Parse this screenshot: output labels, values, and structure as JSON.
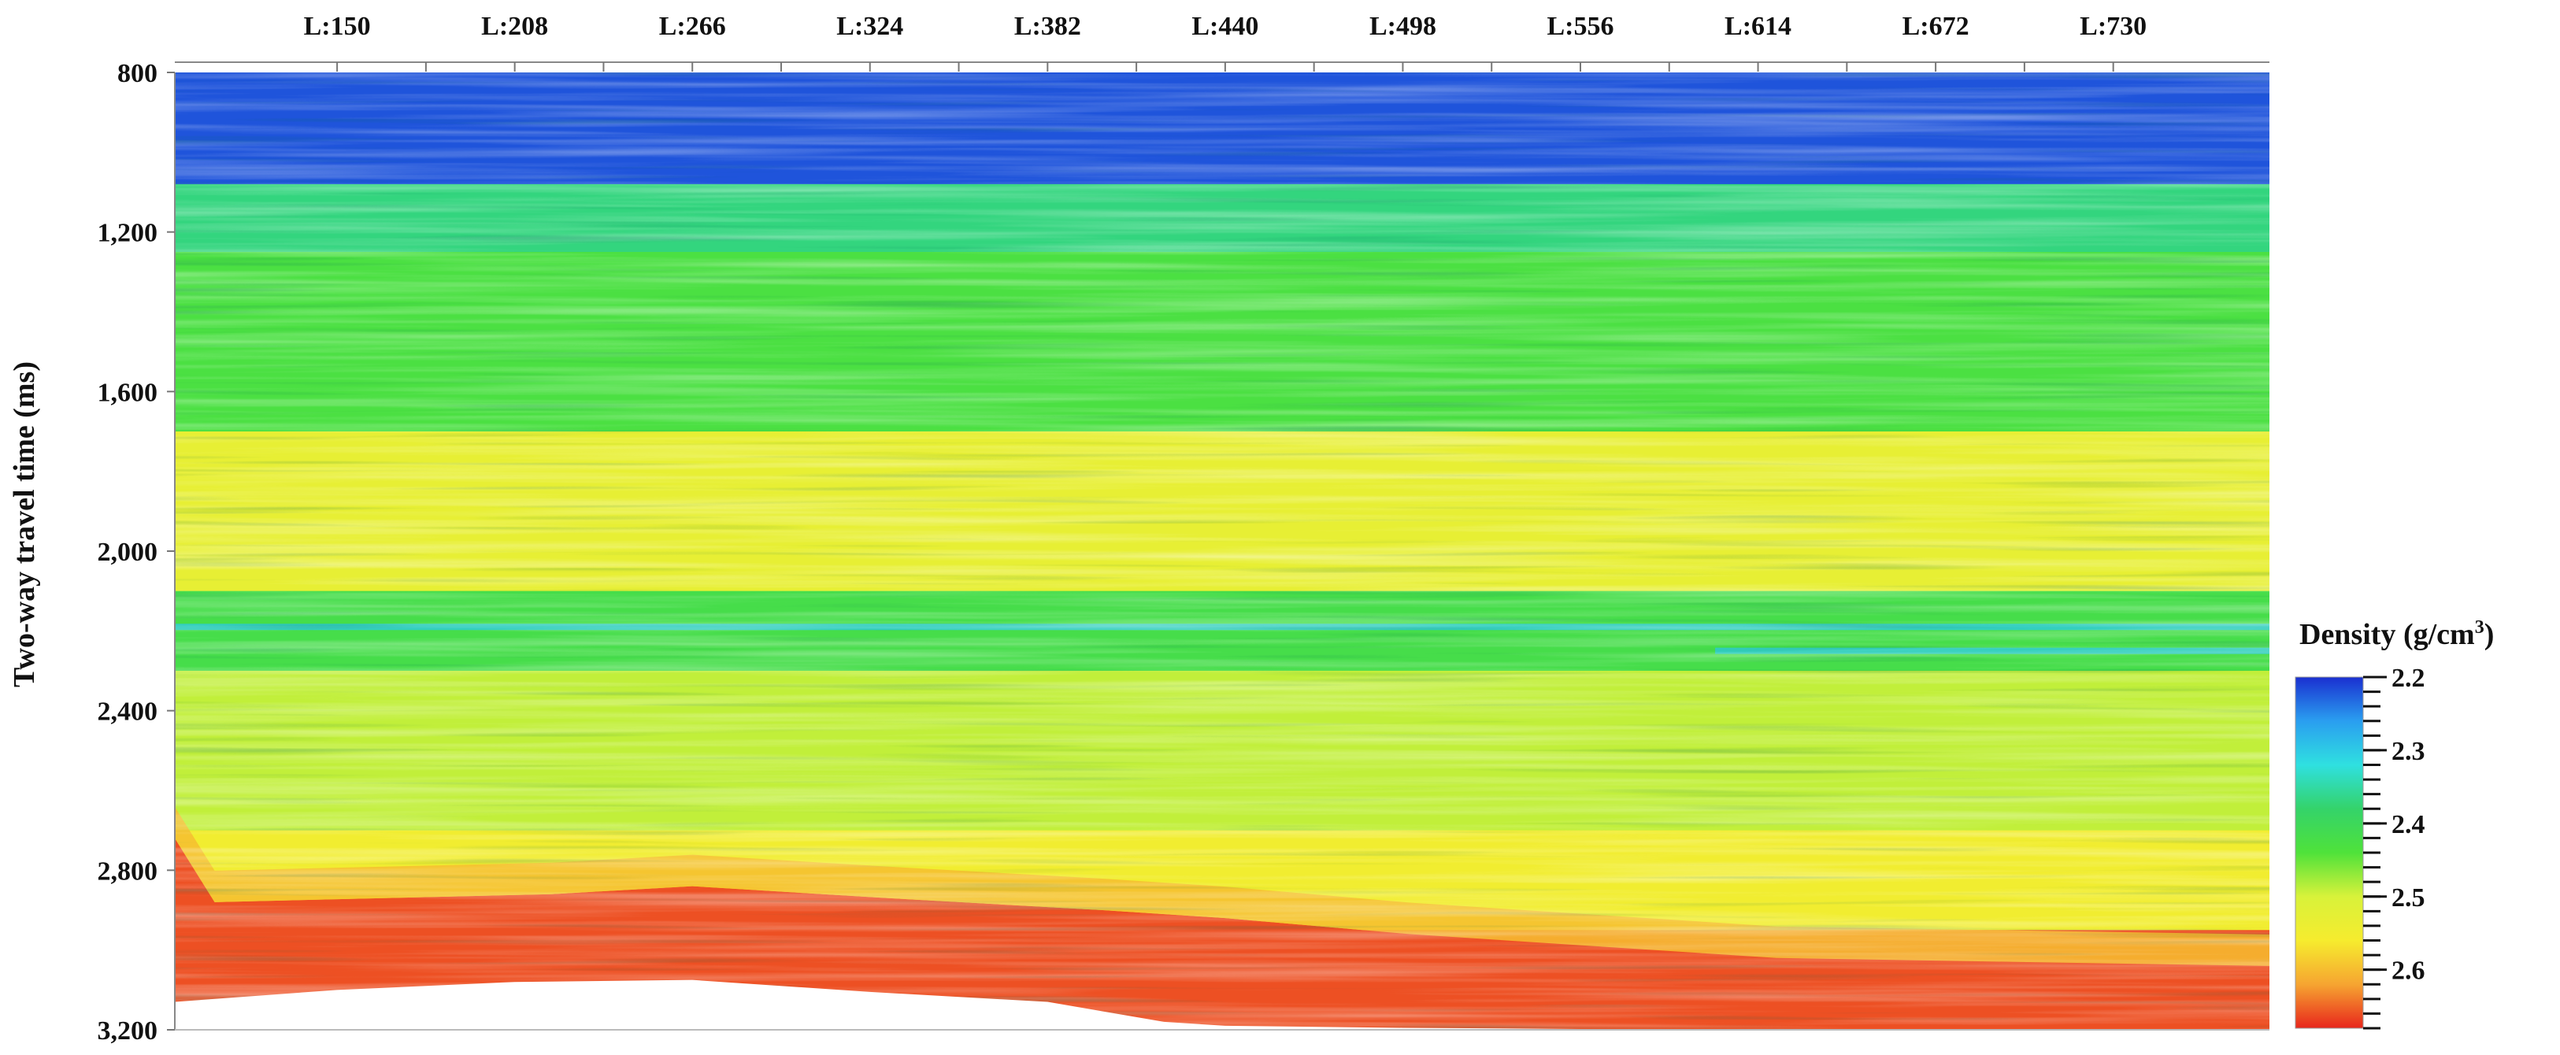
{
  "chart_data": {
    "type": "heatmap",
    "title": "",
    "ylabel": "Two-way travel time (ms)",
    "y_unit": "ms",
    "ylim": [
      800,
      3200
    ],
    "y_ticks": [
      {
        "value": 800,
        "label": "800"
      },
      {
        "value": 1200,
        "label": "1,200"
      },
      {
        "value": 1600,
        "label": "1,600"
      },
      {
        "value": 2000,
        "label": "2,000"
      },
      {
        "value": 2400,
        "label": "2,400"
      },
      {
        "value": 2800,
        "label": "2,800"
      },
      {
        "value": 3200,
        "label": "3,200"
      }
    ],
    "x_ticks": [
      "L:150",
      "L:208",
      "L:266",
      "L:324",
      "L:382",
      "L:440",
      "L:498",
      "L:556",
      "L:614",
      "L:672",
      "L:730"
    ],
    "x_tick_values": [
      150,
      208,
      266,
      324,
      382,
      440,
      498,
      556,
      614,
      672,
      730
    ],
    "xlim": [
      97,
      781
    ],
    "colorbar": {
      "label": "Density (g/cm³)",
      "label_text": "Density (g/cm",
      "label_sup": "3",
      "label_tail": ")",
      "ticks": [
        {
          "value": 2.2,
          "label": "2.2"
        },
        {
          "value": 2.3,
          "label": "2.3"
        },
        {
          "value": 2.4,
          "label": "2.4"
        },
        {
          "value": 2.5,
          "label": "2.5"
        },
        {
          "value": 2.6,
          "label": "2.6"
        }
      ],
      "range": [
        2.2,
        2.68
      ],
      "colors": [
        "#1a2fd0",
        "#2a9ef0",
        "#2fe0e0",
        "#34d36a",
        "#4fe23a",
        "#d8f23a",
        "#f6ec2e",
        "#f6a531",
        "#e8261c"
      ]
    },
    "layers": [
      {
        "t_top": 800,
        "t_bottom": 1080,
        "density": 2.22
      },
      {
        "t_top": 1080,
        "t_bottom": 1250,
        "density": 2.37
      },
      {
        "t_top": 1250,
        "t_bottom": 1700,
        "density": 2.43
      },
      {
        "t_top": 1700,
        "t_bottom": 2100,
        "density": 2.53
      },
      {
        "t_top": 2100,
        "t_bottom": 2300,
        "density": 2.42
      },
      {
        "t_top": 2300,
        "t_bottom": 2700,
        "density": 2.49
      },
      {
        "t_top": 2700,
        "t_bottom": 2950,
        "density": 2.55
      },
      {
        "t_top": 2950,
        "t_bottom": 3200,
        "density": 2.66
      }
    ],
    "red_zone_top": {
      "x": [
        97,
        110,
        220,
        266,
        330,
        400,
        440,
        500,
        560,
        620,
        700,
        781
      ],
      "time": [
        2720,
        2880,
        2860,
        2840,
        2870,
        2900,
        2920,
        2960,
        2990,
        3020,
        3030,
        3040
      ]
    },
    "section_base": {
      "x": [
        97,
        150,
        208,
        266,
        324,
        382,
        420,
        440,
        498,
        556,
        614,
        672,
        730,
        781
      ],
      "time": [
        3130,
        3100,
        3080,
        3075,
        3105,
        3130,
        3180,
        3190,
        3195,
        3198,
        3200,
        3200,
        3200,
        3200
      ]
    },
    "channels": [
      {
        "t": 2190,
        "x_from": 97,
        "x_to": 781
      },
      {
        "t": 2250,
        "x_from": 600,
        "x_to": 781
      }
    ]
  }
}
